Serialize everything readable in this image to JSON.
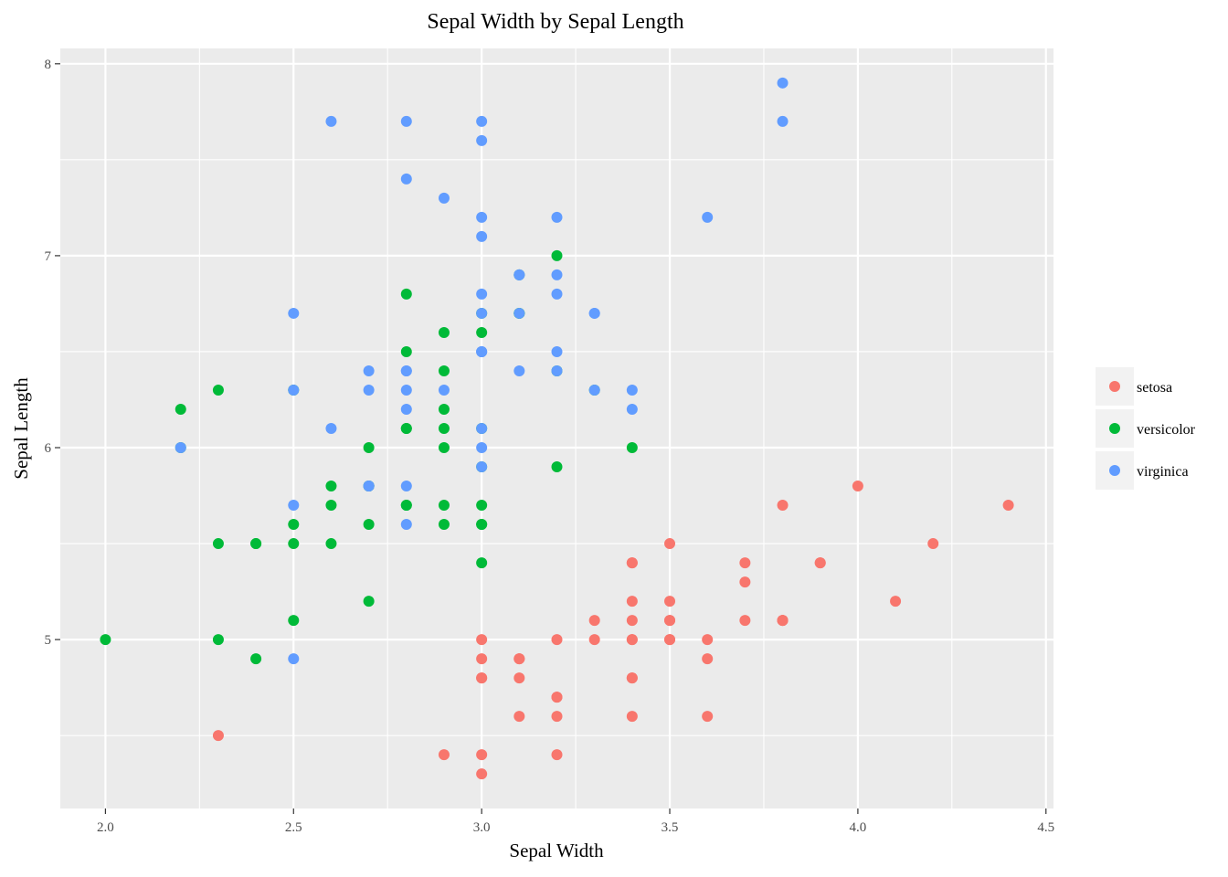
{
  "chart_data": {
    "type": "scatter",
    "title": "Sepal Width by Sepal Length",
    "xlabel": "Sepal Width",
    "ylabel": "Sepal Length",
    "xlim": [
      1.88,
      4.52
    ],
    "ylim": [
      4.12,
      8.08
    ],
    "x_ticks": [
      2.0,
      2.5,
      3.0,
      3.5,
      4.0,
      4.5
    ],
    "x_tick_labels": [
      "2.0",
      "2.5",
      "3.0",
      "3.5",
      "4.0",
      "4.5"
    ],
    "y_ticks": [
      5,
      6,
      7,
      8
    ],
    "y_tick_labels": [
      "5",
      "6",
      "7",
      "8"
    ],
    "grid": true,
    "legend_position": "right",
    "series": [
      {
        "name": "setosa",
        "color": "#F8766D",
        "points": [
          [
            3.5,
            5.1
          ],
          [
            3.0,
            4.9
          ],
          [
            3.2,
            4.7
          ],
          [
            3.1,
            4.6
          ],
          [
            3.6,
            5.0
          ],
          [
            3.9,
            5.4
          ],
          [
            3.4,
            4.6
          ],
          [
            3.4,
            5.0
          ],
          [
            2.9,
            4.4
          ],
          [
            3.1,
            4.9
          ],
          [
            3.7,
            5.4
          ],
          [
            3.4,
            4.8
          ],
          [
            3.0,
            4.8
          ],
          [
            3.0,
            4.3
          ],
          [
            4.0,
            5.8
          ],
          [
            4.4,
            5.7
          ],
          [
            3.9,
            5.4
          ],
          [
            3.5,
            5.1
          ],
          [
            3.8,
            5.7
          ],
          [
            3.8,
            5.1
          ],
          [
            3.4,
            5.4
          ],
          [
            3.7,
            5.1
          ],
          [
            3.6,
            4.6
          ],
          [
            3.3,
            5.1
          ],
          [
            3.4,
            4.8
          ],
          [
            3.0,
            5.0
          ],
          [
            3.4,
            5.0
          ],
          [
            3.5,
            5.2
          ],
          [
            3.4,
            5.2
          ],
          [
            3.2,
            4.7
          ],
          [
            3.1,
            4.8
          ],
          [
            3.4,
            5.4
          ],
          [
            4.1,
            5.2
          ],
          [
            4.2,
            5.5
          ],
          [
            3.1,
            4.9
          ],
          [
            3.2,
            5.0
          ],
          [
            3.5,
            5.5
          ],
          [
            3.6,
            4.9
          ],
          [
            3.0,
            4.4
          ],
          [
            3.4,
            5.1
          ],
          [
            3.5,
            5.0
          ],
          [
            2.3,
            4.5
          ],
          [
            3.2,
            4.4
          ],
          [
            3.5,
            5.0
          ],
          [
            3.8,
            5.1
          ],
          [
            3.0,
            4.8
          ],
          [
            3.8,
            5.1
          ],
          [
            3.2,
            4.6
          ],
          [
            3.7,
            5.3
          ],
          [
            3.3,
            5.0
          ]
        ]
      },
      {
        "name": "versicolor",
        "color": "#00BA38",
        "points": [
          [
            3.2,
            7.0
          ],
          [
            3.2,
            6.4
          ],
          [
            3.1,
            6.9
          ],
          [
            2.3,
            5.5
          ],
          [
            2.8,
            6.5
          ],
          [
            2.8,
            5.7
          ],
          [
            3.3,
            6.3
          ],
          [
            2.4,
            4.9
          ],
          [
            2.9,
            6.6
          ],
          [
            2.7,
            5.2
          ],
          [
            2.0,
            5.0
          ],
          [
            3.0,
            5.9
          ],
          [
            2.2,
            6.0
          ],
          [
            2.9,
            6.1
          ],
          [
            2.9,
            5.6
          ],
          [
            3.1,
            6.7
          ],
          [
            3.0,
            5.6
          ],
          [
            2.7,
            5.8
          ],
          [
            2.2,
            6.2
          ],
          [
            2.5,
            5.6
          ],
          [
            3.2,
            5.9
          ],
          [
            2.8,
            6.1
          ],
          [
            2.5,
            6.3
          ],
          [
            2.8,
            6.1
          ],
          [
            2.9,
            6.4
          ],
          [
            3.0,
            6.6
          ],
          [
            2.8,
            6.8
          ],
          [
            3.0,
            6.7
          ],
          [
            2.9,
            6.0
          ],
          [
            2.6,
            5.7
          ],
          [
            2.4,
            5.5
          ],
          [
            2.4,
            5.5
          ],
          [
            2.7,
            5.8
          ],
          [
            2.7,
            6.0
          ],
          [
            3.0,
            5.4
          ],
          [
            3.4,
            6.0
          ],
          [
            3.1,
            6.7
          ],
          [
            2.3,
            6.3
          ],
          [
            3.0,
            5.6
          ],
          [
            2.5,
            5.5
          ],
          [
            2.6,
            5.5
          ],
          [
            3.0,
            6.1
          ],
          [
            2.6,
            5.8
          ],
          [
            2.3,
            5.0
          ],
          [
            2.7,
            5.6
          ],
          [
            3.0,
            5.7
          ],
          [
            2.9,
            5.7
          ],
          [
            2.9,
            6.2
          ],
          [
            2.5,
            5.1
          ],
          [
            2.8,
            5.7
          ]
        ]
      },
      {
        "name": "virginica",
        "color": "#619CFF",
        "points": [
          [
            3.3,
            6.3
          ],
          [
            2.7,
            5.8
          ],
          [
            3.0,
            7.1
          ],
          [
            2.9,
            6.3
          ],
          [
            3.0,
            6.5
          ],
          [
            3.0,
            7.6
          ],
          [
            2.5,
            4.9
          ],
          [
            2.9,
            7.3
          ],
          [
            2.5,
            6.7
          ],
          [
            3.6,
            7.2
          ],
          [
            3.2,
            6.5
          ],
          [
            2.7,
            6.4
          ],
          [
            3.0,
            6.8
          ],
          [
            2.5,
            5.7
          ],
          [
            2.8,
            5.8
          ],
          [
            3.2,
            6.4
          ],
          [
            3.0,
            6.5
          ],
          [
            3.8,
            7.7
          ],
          [
            2.6,
            7.7
          ],
          [
            2.2,
            6.0
          ],
          [
            3.2,
            6.9
          ],
          [
            2.8,
            5.6
          ],
          [
            2.8,
            7.7
          ],
          [
            2.7,
            6.3
          ],
          [
            3.3,
            6.7
          ],
          [
            3.2,
            7.2
          ],
          [
            2.8,
            6.2
          ],
          [
            3.0,
            6.1
          ],
          [
            2.8,
            6.4
          ],
          [
            3.0,
            7.2
          ],
          [
            2.8,
            7.4
          ],
          [
            3.8,
            7.9
          ],
          [
            2.8,
            6.4
          ],
          [
            2.8,
            6.3
          ],
          [
            2.6,
            6.1
          ],
          [
            3.0,
            7.7
          ],
          [
            3.4,
            6.3
          ],
          [
            3.1,
            6.4
          ],
          [
            3.0,
            6.0
          ],
          [
            3.1,
            6.9
          ],
          [
            3.1,
            6.7
          ],
          [
            3.1,
            6.9
          ],
          [
            2.7,
            5.8
          ],
          [
            3.2,
            6.8
          ],
          [
            3.3,
            6.7
          ],
          [
            3.0,
            6.7
          ],
          [
            2.5,
            6.3
          ],
          [
            3.0,
            6.5
          ],
          [
            3.4,
            6.2
          ],
          [
            3.0,
            5.9
          ]
        ]
      }
    ]
  }
}
